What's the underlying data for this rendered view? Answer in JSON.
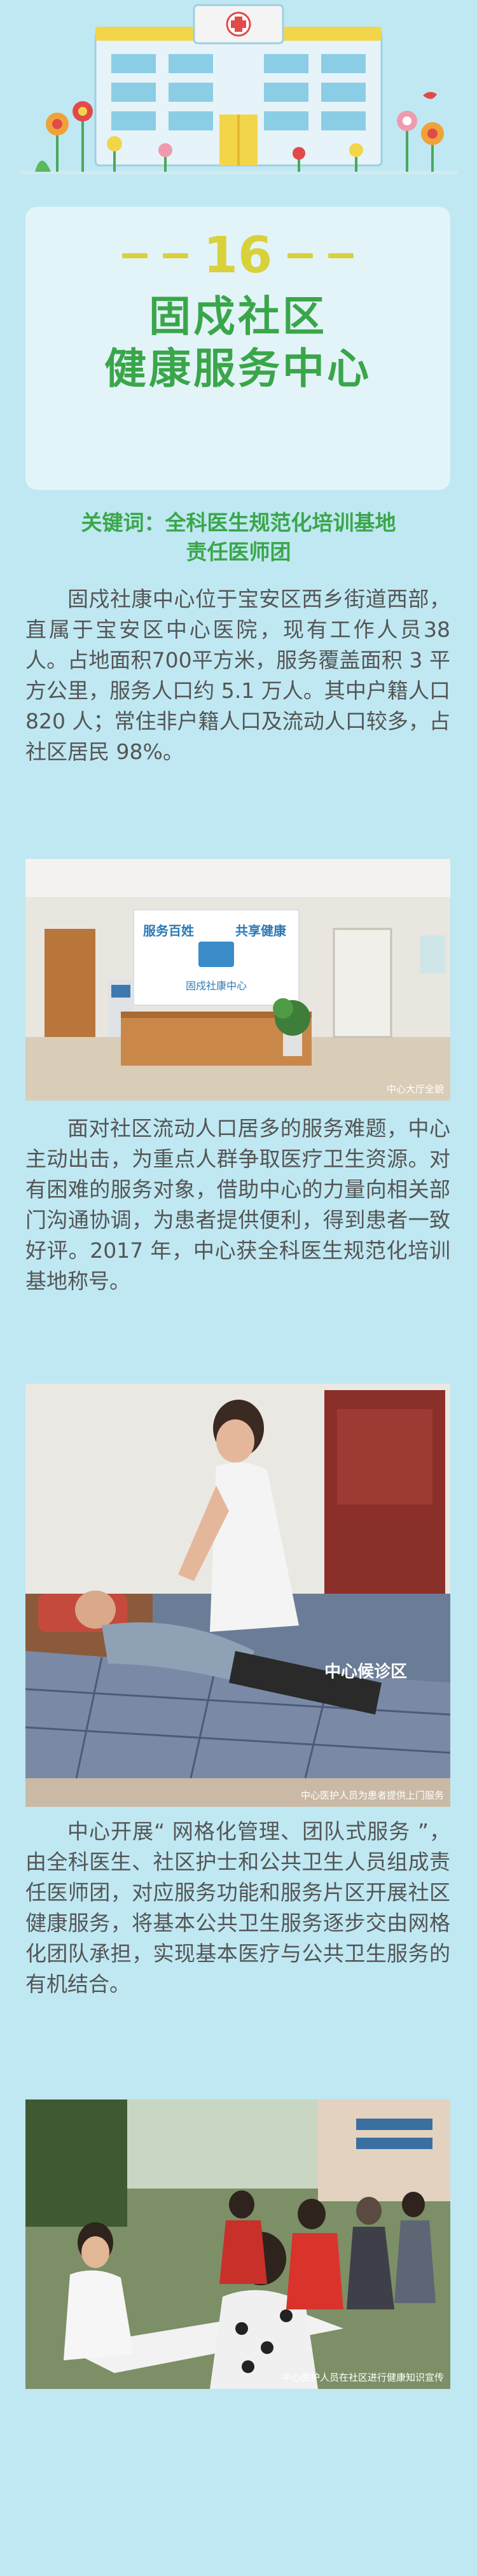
{
  "title": {
    "number": "16",
    "line1": "固戍社区",
    "line2": "健康服务中心"
  },
  "keywords": {
    "line1": "关键词：全科医生规范化培训基地",
    "line2": "责任医师团"
  },
  "paragraphs": [
    "固戍社康中心位于宝安区西乡街道西部，直属于宝安区中心医院，现有工作人员38人。占地面积700平方米，服务覆盖面积 3 平方公里，服务人口约 5.1 万人。其中户籍人口 820 人；常住非户籍人口及流动人口较多，占社区居民 98%。",
    "面对社区流动人口居多的服务难题，中心主动出击，为重点人群争取医疗卫生资源。对有困难的服务对象，借助中心的力量向相关部门沟通协调，为患者提供便利，得到患者一致好评。2017 年，中心获全科医生规范化培训基地称号。",
    "中心开展“ 网格化管理、团队式服务 ”，由全科医生、社区护士和公共卫生人员组成责任医师团，对应服务功能和服务片区开展社区健康服务，将基本公共卫生服务逐步交由网格化团队承担，实现基本医疗与公共卫生服务的有机结合。"
  ],
  "photos": {
    "photo1": {
      "sign_line_left": "服务百姓",
      "sign_line_right": "共享健康",
      "sign_name": "固戍社康中心",
      "caption": "中心大厅全貌"
    },
    "photo2": {
      "label": "中心候诊区",
      "caption": "中心医护人员为患者提供上门服务"
    },
    "photo3": {
      "caption": "中心医护人员在社区进行健康知识宣传"
    }
  },
  "colors": {
    "background": "#bfe8f2",
    "card": "#e3f4f9",
    "accent_green": "#3aa64a",
    "accent_yellow": "#d9d13b",
    "body_text": "#555555"
  }
}
